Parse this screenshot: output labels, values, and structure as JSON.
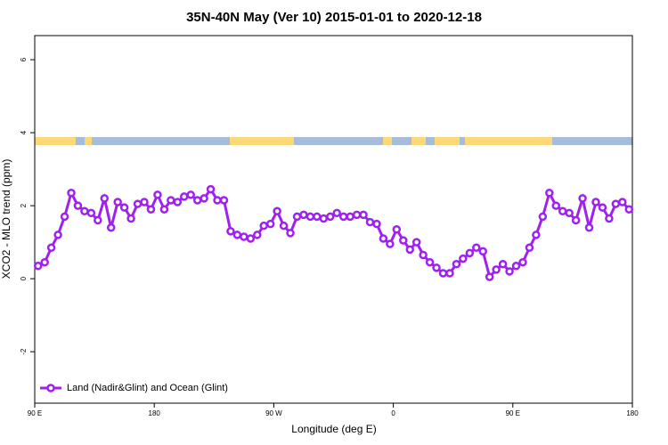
{
  "chart_data": {
    "type": "line",
    "title": "35N-40N May (Ver 10)   2015-01-01 to 2020-12-18",
    "xlabel": "Longitude (deg E)",
    "ylabel": "XCO2 - MLO trend (ppm)",
    "xlim": [
      90,
      540
    ],
    "xticks": [
      {
        "value": 90,
        "label": "90 E"
      },
      180,
      {
        "value": 270,
        "label": "90 W"
      },
      {
        "value": 360,
        "label": "0"
      },
      {
        "value": 450,
        "label": "90 E"
      },
      {
        "value": 540,
        "label": "180"
      }
    ],
    "ylim": [
      -3.41,
      6.66
    ],
    "yticks": [
      -2,
      0,
      2,
      4,
      6
    ],
    "legend": "bottom-left",
    "x": [
      92.5,
      97.5,
      102.5,
      107.5,
      112.5,
      117.5,
      122.5,
      127.5,
      132.5,
      137.5,
      142.5,
      147.5,
      152.5,
      157.5,
      162.5,
      167.5,
      172.5,
      177.5,
      182.5,
      187.5,
      192.5,
      197.5,
      202.5,
      207.5,
      212.5,
      217.5,
      222.5,
      227.5,
      232.5,
      237.5,
      242.5,
      247.5,
      252.5,
      257.5,
      262.5,
      267.5,
      272.5,
      277.5,
      282.5,
      287.5,
      292.5,
      297.5,
      302.5,
      307.5,
      312.5,
      317.5,
      322.5,
      327.5,
      332.5,
      337.5,
      342.5,
      347.5,
      352.5,
      357.5,
      362.5,
      367.5,
      372.5,
      377.5,
      382.5,
      387.5,
      392.5,
      397.5,
      402.5,
      407.5,
      412.5,
      417.5,
      422.5,
      427.5,
      432.5,
      437.5,
      442.5,
      447.5,
      452.5,
      457.5,
      462.5,
      467.5,
      472.5,
      477.5,
      482.5,
      487.5,
      492.5,
      497.5,
      502.5,
      507.5,
      512.5,
      517.5,
      522.5,
      527.5,
      532.5,
      537.5
    ],
    "series": [
      {
        "name": "Land (Nadir&Glint) and Ocean (Glint)",
        "color": "#a020f0",
        "values": [
          0.35,
          0.45,
          0.85,
          1.2,
          1.7,
          2.35,
          2.0,
          1.85,
          1.8,
          1.6,
          2.2,
          1.4,
          2.1,
          1.95,
          1.65,
          2.05,
          2.1,
          1.9,
          2.3,
          1.9,
          2.15,
          2.1,
          2.25,
          2.3,
          2.15,
          2.2,
          2.45,
          2.15,
          2.15,
          1.3,
          1.2,
          1.15,
          1.1,
          1.2,
          1.45,
          1.5,
          1.85,
          1.45,
          1.25,
          1.7,
          1.75,
          1.7,
          1.7,
          1.65,
          1.7,
          1.8,
          1.7,
          1.7,
          1.75,
          1.75,
          1.55,
          1.5,
          1.1,
          0.95,
          1.35,
          1.05,
          0.8,
          1.0,
          0.65,
          0.45,
          0.3,
          0.15,
          0.15,
          0.4,
          0.55,
          0.7,
          0.85,
          0.75,
          0.05,
          0.25,
          0.4,
          0.2,
          0.35,
          0.45,
          0.85,
          1.2,
          1.7,
          2.35,
          2.0,
          1.85,
          1.8,
          1.6,
          2.2,
          1.4,
          2.1,
          1.95,
          1.65,
          2.05,
          2.1,
          1.9
        ]
      }
    ]
  }
}
